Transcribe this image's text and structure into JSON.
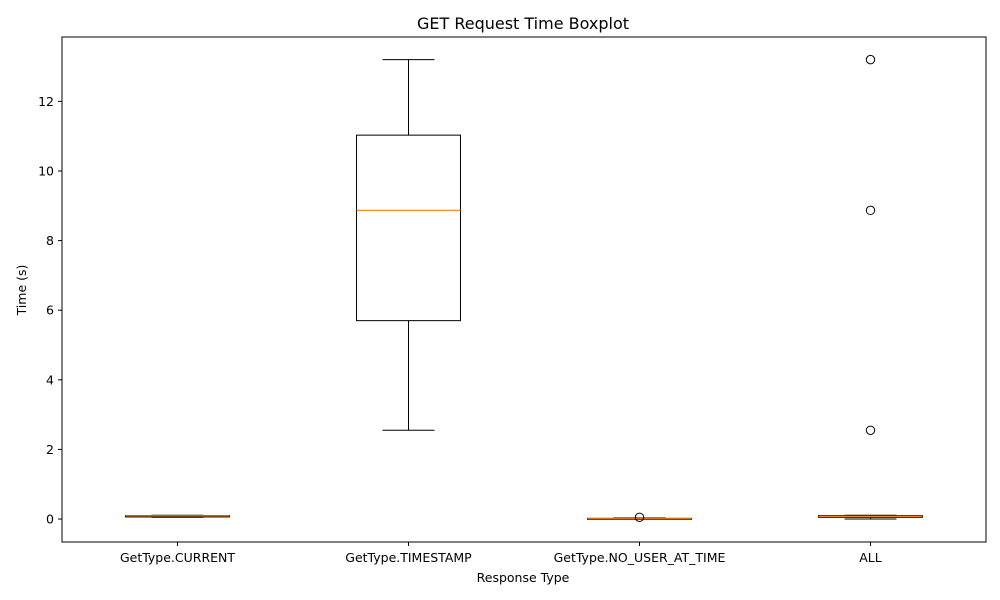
{
  "chart_data": {
    "type": "boxplot",
    "title": "GET Request Time Boxplot",
    "xlabel": "Response Type",
    "ylabel": "Time (s)",
    "ylim": [
      -0.66,
      13.85
    ],
    "yticks": [
      0,
      2,
      4,
      6,
      8,
      10,
      12
    ],
    "grid": false,
    "colors": {
      "box": "#000000",
      "median": "#ff7f0e",
      "outlier": "#000000"
    },
    "categories": [
      "GetType.CURRENT",
      "GetType.TIMESTAMP",
      "GetType.NO_USER_AT_TIME",
      "ALL"
    ],
    "boxes": [
      {
        "category": "GetType.CURRENT",
        "whisker_low": 0.05,
        "q1": 0.06,
        "median": 0.09,
        "q3": 0.1,
        "whisker_high": 0.11,
        "outliers": []
      },
      {
        "category": "GetType.TIMESTAMP",
        "whisker_low": 2.55,
        "q1": 5.7,
        "median": 8.87,
        "q3": 11.03,
        "whisker_high": 13.2,
        "outliers": []
      },
      {
        "category": "GetType.NO_USER_AT_TIME",
        "whisker_low": 0.0,
        "q1": 0.005,
        "median": 0.01,
        "q3": 0.02,
        "whisker_high": 0.03,
        "outliers": [
          0.05
        ]
      },
      {
        "category": "ALL",
        "whisker_low": 0.0,
        "q1": 0.05,
        "median": 0.08,
        "q3": 0.1,
        "whisker_high": 0.11,
        "outliers": [
          2.55,
          8.87,
          13.2
        ]
      }
    ]
  }
}
